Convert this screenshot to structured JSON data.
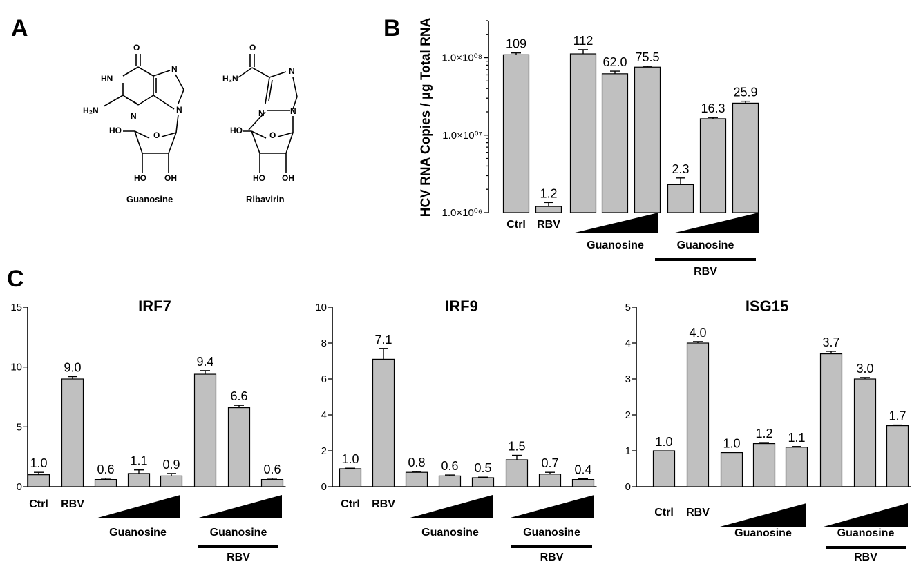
{
  "panels": {
    "a": {
      "letter": "A",
      "molecules": [
        "Guanosine",
        "Ribavirin"
      ]
    },
    "b": {
      "letter": "B"
    },
    "c": {
      "letter": "C"
    }
  },
  "chart_data": [
    {
      "id": "B",
      "type": "bar",
      "yscale": "log",
      "ylim": [
        1000000,
        300000000
      ],
      "ylabel": "HCV RNA Copies / µg Total RNA",
      "yticks": [
        1000000,
        10000000,
        100000000
      ],
      "ytick_labels": [
        "1.0×10⁰⁶",
        "1.0×10⁰⁷",
        "1.0×10⁰⁸"
      ],
      "categories": [
        "Ctrl",
        "RBV",
        "Guanosine-1",
        "Guanosine-2",
        "Guanosine-3",
        "Guanosine+RBV-1",
        "Guanosine+RBV-2",
        "Guanosine+RBV-3"
      ],
      "category_labels": [
        "Ctrl",
        "RBV"
      ],
      "values": [
        109000000,
        1200000,
        112000000,
        62000000,
        75500000,
        2300000,
        16300000,
        25900000
      ],
      "errors": [
        6000000,
        150000,
        15000000,
        5000000,
        2000000,
        500000,
        600000,
        1500000
      ],
      "data_labels": [
        "109",
        "1.2",
        "112",
        "62.0",
        "75.5",
        "2.3",
        "16.3",
        "25.9"
      ],
      "group_labels": [
        "Guanosine",
        "Guanosine",
        "RBV"
      ]
    },
    {
      "id": "IRF7",
      "type": "bar",
      "title": "IRF7",
      "ylim": [
        0,
        15
      ],
      "yticks": [
        0,
        5,
        10,
        15
      ],
      "categories": [
        "Ctrl",
        "RBV",
        "Guanosine-1",
        "Guanosine-2",
        "Guanosine-3",
        "Guanosine+RBV-1",
        "Guanosine+RBV-2",
        "Guanosine+RBV-3"
      ],
      "category_labels": [
        "Ctrl",
        "RBV"
      ],
      "values": [
        1.0,
        9.0,
        0.6,
        1.1,
        0.9,
        9.4,
        6.6,
        0.6
      ],
      "errors": [
        0.2,
        0.2,
        0.1,
        0.3,
        0.2,
        0.3,
        0.2,
        0.1
      ],
      "data_labels": [
        "1.0",
        "9.0",
        "0.6",
        "1.1",
        "0.9",
        "9.4",
        "6.6",
        "0.6"
      ],
      "group_labels": [
        "Guanosine",
        "Guanosine",
        "RBV"
      ]
    },
    {
      "id": "IRF9",
      "type": "bar",
      "title": "IRF9",
      "ylim": [
        0,
        10
      ],
      "yticks": [
        0,
        2,
        4,
        6,
        8,
        10
      ],
      "categories": [
        "Ctrl",
        "RBV",
        "Guanosine-1",
        "Guanosine-2",
        "Guanosine-3",
        "Guanosine+RBV-1",
        "Guanosine+RBV-2",
        "Guanosine+RBV-3"
      ],
      "category_labels": [
        "Ctrl",
        "RBV"
      ],
      "values": [
        1.0,
        7.1,
        0.8,
        0.6,
        0.5,
        1.5,
        0.7,
        0.4
      ],
      "errors": [
        0.03,
        0.6,
        0.05,
        0.05,
        0.03,
        0.25,
        0.1,
        0.05
      ],
      "data_labels": [
        "1.0",
        "7.1",
        "0.8",
        "0.6",
        "0.5",
        "1.5",
        "0.7",
        "0.4"
      ],
      "group_labels": [
        "Guanosine",
        "Guanosine",
        "RBV"
      ]
    },
    {
      "id": "ISG15",
      "type": "bar",
      "title": "ISG15",
      "ylim": [
        0,
        5
      ],
      "yticks": [
        0,
        1,
        2,
        3,
        4,
        5
      ],
      "categories": [
        "Ctrl",
        "RBV",
        "Guanosine-1",
        "Guanosine-2",
        "Guanosine-3",
        "Guanosine+RBV-1",
        "Guanosine+RBV-2",
        "Guanosine+RBV-3"
      ],
      "category_labels": [
        "Ctrl",
        "RBV"
      ],
      "values": [
        1.0,
        4.0,
        0.95,
        1.2,
        1.1,
        3.7,
        3.0,
        1.7
      ],
      "errors": [
        0.0,
        0.04,
        0.0,
        0.03,
        0.02,
        0.07,
        0.04,
        0.02
      ],
      "data_labels": [
        "1.0",
        "4.0",
        "1.0",
        "1.2",
        "1.1",
        "3.7",
        "3.0",
        "1.7"
      ],
      "group_labels": [
        "Guanosine",
        "Guanosine",
        "RBV"
      ]
    }
  ]
}
